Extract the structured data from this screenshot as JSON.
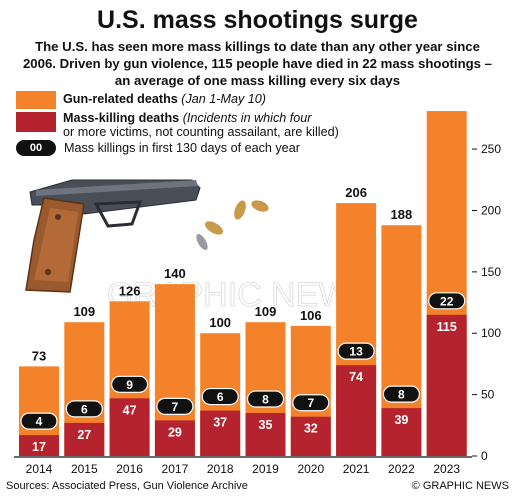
{
  "title": "U.S. mass shootings surge",
  "subtitle": {
    "line1": "The U.S. has seen more mass killings to date than any other year since",
    "line2": "2006. Driven by gun violence, 115 people have died in 22 mass shootings –",
    "line3": "an average of one mass killing every six days"
  },
  "legend": {
    "gun_label": "Gun-related deaths",
    "gun_note": "(Jan 1-May 10)",
    "mass_label": "Mass-killing deaths",
    "mass_note1": "(Incidents in which four",
    "mass_note2": "or more victims, not counting assailant, are killed)",
    "pill_text": "00",
    "count_label": "Mass killings in first 130 days of each year"
  },
  "colors": {
    "gun_related": "#F4822A",
    "mass_killing": "#B5232E",
    "pill": "#111111"
  },
  "watermark": "GRAPHIC NEWS",
  "footer": {
    "source": "Sources: Associated Press, Gun Violence Archive",
    "credit": "© GRAPHIC NEWS"
  },
  "chart_data": {
    "type": "bar",
    "categories": [
      "2014",
      "2015",
      "2016",
      "2017",
      "2018",
      "2019",
      "2020",
      "2021",
      "2022",
      "2023"
    ],
    "series": [
      {
        "name": "Gun-related deaths",
        "values": [
          73,
          109,
          126,
          140,
          100,
          109,
          106,
          206,
          188,
          281
        ]
      },
      {
        "name": "Mass-killing deaths",
        "values": [
          17,
          27,
          47,
          29,
          37,
          35,
          32,
          74,
          39,
          115
        ]
      },
      {
        "name": "Mass killings in first 130 days of each year",
        "values": [
          4,
          6,
          9,
          7,
          6,
          8,
          7,
          13,
          8,
          22
        ]
      }
    ],
    "yticks": [
      0,
      50,
      100,
      150,
      200,
      250
    ],
    "ylim": [
      0,
      290
    ],
    "grid": false
  }
}
